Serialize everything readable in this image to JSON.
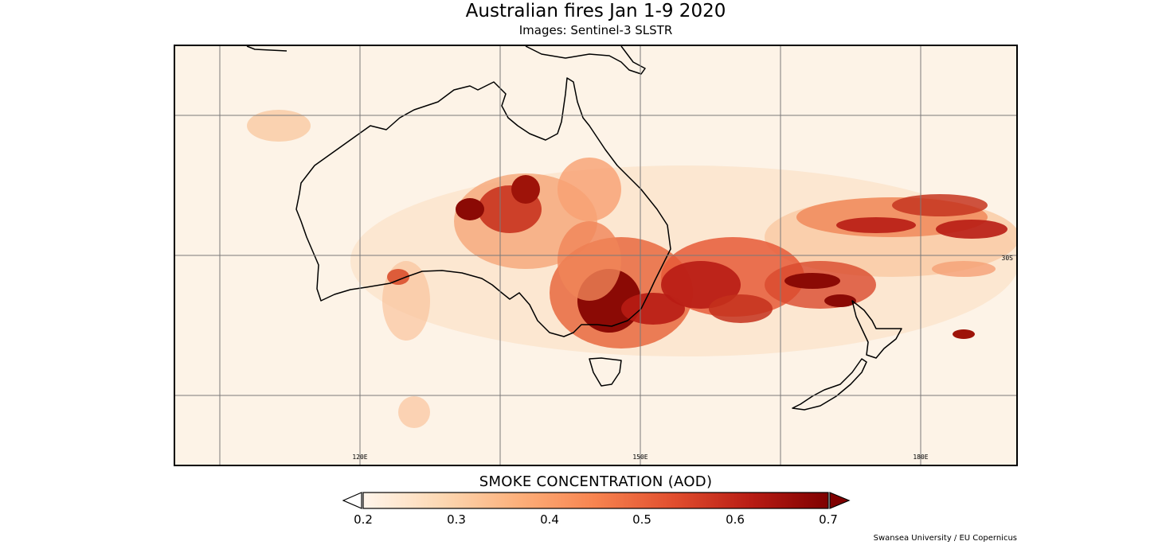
{
  "title": "Australian fires Jan 1-9 2020",
  "subtitle": "Images: Sentinel-3 SLSTR",
  "map": {
    "longitude_labels": [
      "120E",
      "150E",
      "180E"
    ],
    "latitude_labels": [
      "30S"
    ]
  },
  "colorbar": {
    "title": "SMOKE CONCENTRATION (AOD)",
    "ticks": [
      "0.2",
      "0.3",
      "0.4",
      "0.5",
      "0.6",
      "0.7"
    ],
    "min": 0.2,
    "max": 0.7,
    "extend": "both",
    "colors": [
      "#fff5eb",
      "#fdd8b3",
      "#fdb07b",
      "#f7834f",
      "#e14e2e",
      "#b81c14",
      "#7f0000"
    ]
  },
  "credit": "Swansea University / EU Copernicus"
}
